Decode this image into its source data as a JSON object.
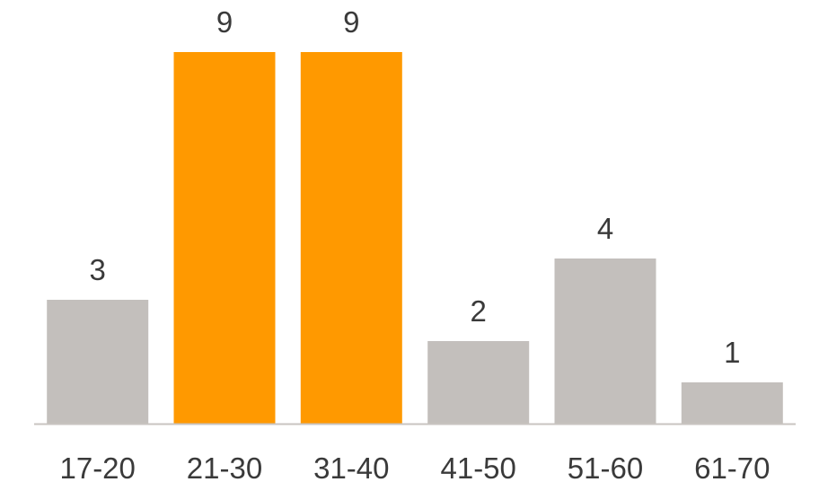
{
  "chart_data": {
    "type": "bar",
    "categories": [
      "17-20",
      "21-30",
      "31-40",
      "41-50",
      "51-60",
      "61-70"
    ],
    "values": [
      3,
      9,
      9,
      2,
      4,
      1
    ],
    "data_labels": [
      "3",
      "9",
      "9",
      "2",
      "4",
      "1"
    ],
    "title": "",
    "xlabel": "",
    "ylabel": "",
    "ylim": [
      0,
      9
    ],
    "grid": false,
    "legend": "none",
    "highlighted_categories": [
      "21-30",
      "31-40"
    ],
    "colors": {
      "default": "#c3bfbc",
      "highlight": "#ff9900",
      "axis": "#c8c4c1",
      "text": "#3a3a3a"
    }
  }
}
